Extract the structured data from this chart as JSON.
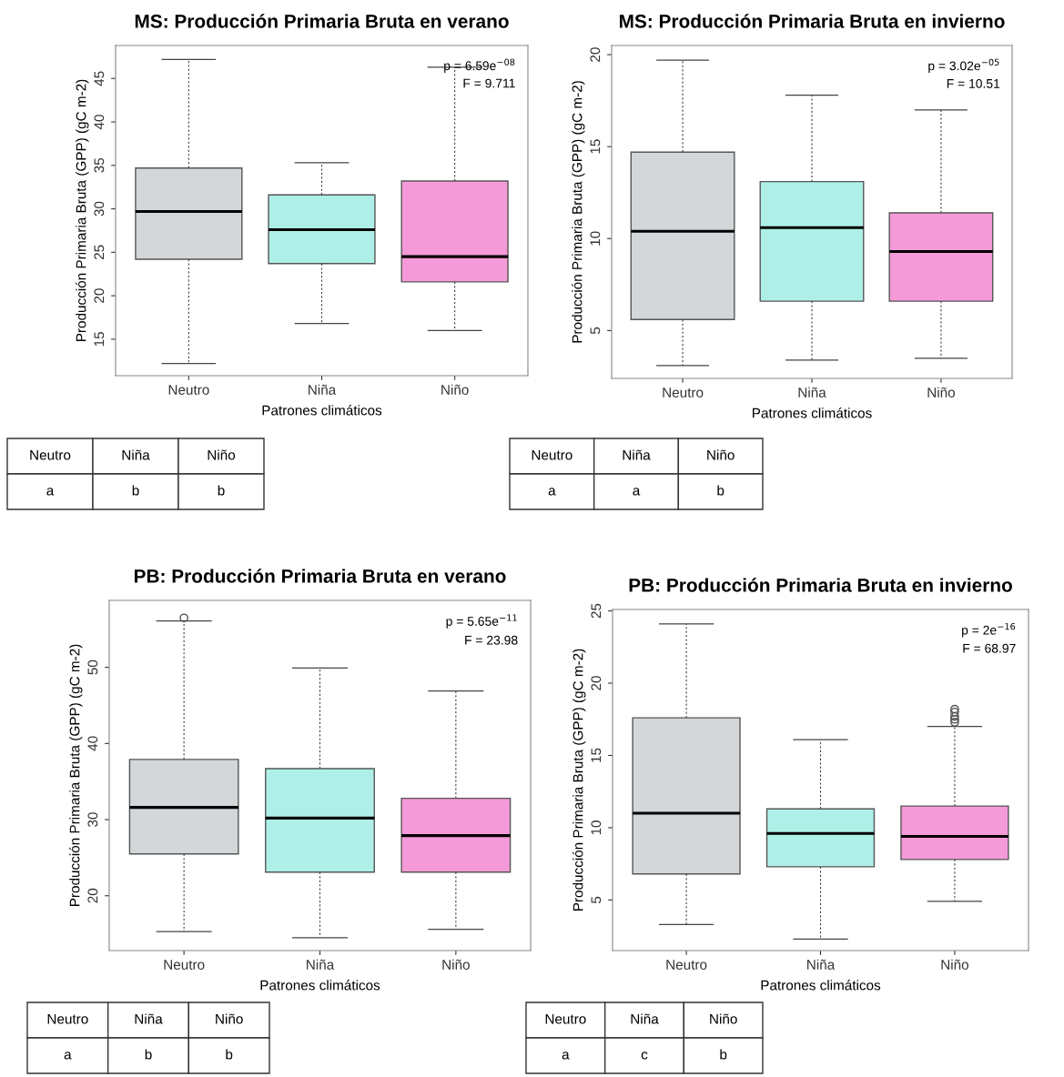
{
  "chart_data": [
    {
      "type": "box",
      "title": "MS: Producción Primaria Bruta en verano",
      "xlabel": "Patrones climáticos",
      "ylabel": "Producción Primaria Bruta (GPP) (gC m-2)",
      "categories": [
        "Neutro",
        "Niña",
        "Niño"
      ],
      "colors": [
        "#d3d7d9",
        "#aef0e8",
        "#f59ad8"
      ],
      "boxes": [
        {
          "low": 12.2,
          "q1": 24.2,
          "median": 29.7,
          "q3": 34.7,
          "high": 47.2
        },
        {
          "low": 16.8,
          "q1": 23.7,
          "median": 27.6,
          "q3": 31.6,
          "high": 35.3
        },
        {
          "low": 16.0,
          "q1": 21.6,
          "median": 24.5,
          "q3": 33.2,
          "high": 46.3
        }
      ],
      "ylim": [
        10.8,
        48.8
      ],
      "yticks": [
        15,
        20,
        25,
        30,
        35,
        40,
        45
      ],
      "annotations": [
        "p = 6.59e$^{−08}$",
        "F = 9.711",
        "a",
        "b",
        "b"
      ]
    },
    {
      "type": "box",
      "title": "MS: Producción Primaria Bruta en invierno",
      "xlabel": "Patrones climáticos",
      "ylabel": "Producción Primaria Bruta (GPP) (gC m-2)",
      "categories": [
        "Neutro",
        "Niña",
        "Niño"
      ],
      "colors": [
        "#d3d7d9",
        "#aef0e8",
        "#f59ad8"
      ],
      "boxes": [
        {
          "low": 3.1,
          "q1": 5.6,
          "median": 10.4,
          "q3": 14.7,
          "high": 19.7
        },
        {
          "low": 3.4,
          "q1": 6.6,
          "median": 10.6,
          "q3": 13.1,
          "high": 17.8
        },
        {
          "low": 3.5,
          "q1": 6.6,
          "median": 9.3,
          "q3": 11.4,
          "high": 17.0
        }
      ],
      "ylim": [
        2.4,
        20.5
      ],
      "yticks": [
        5,
        10,
        15,
        20
      ],
      "annotations": [
        "p = 3.02e$^{−05}$",
        "F = 10.51",
        "a",
        "a",
        "b"
      ]
    },
    {
      "type": "box",
      "title": "PB: Producción Primaria Bruta en verano",
      "xlabel": "Patrones climáticos",
      "ylabel": "Producción Primaria Bruta (GPP) (gC m-2)",
      "categories": [
        "Neutro",
        "Niña",
        "Niño"
      ],
      "colors": [
        "#d3d7d9",
        "#aef0e8",
        "#f59ad8"
      ],
      "boxes": [
        {
          "low": 15.3,
          "q1": 25.5,
          "median": 31.6,
          "q3": 37.9,
          "high": 56.1,
          "outliers": [
            56.5
          ]
        },
        {
          "low": 14.5,
          "q1": 23.1,
          "median": 30.2,
          "q3": 36.7,
          "high": 49.9
        },
        {
          "low": 15.6,
          "q1": 23.1,
          "median": 27.9,
          "q3": 32.8,
          "high": 46.9
        }
      ],
      "ylim": [
        12.8,
        58.8
      ],
      "yticks": [
        20,
        30,
        40,
        50
      ],
      "annotations": [
        "p = 5.65e$^{−11}$",
        "F = 23.98",
        "a",
        "b",
        "b"
      ]
    },
    {
      "type": "box",
      "title": "PB: Producción Primaria Bruta en invierno",
      "xlabel": "Patrones climáticos",
      "ylabel": "Producción Primaria Bruta (GPP) (gC m-2)",
      "categories": [
        "Neutro",
        "Niña",
        "Niño"
      ],
      "colors": [
        "#d3d7d9",
        "#aef0e8",
        "#f59ad8"
      ],
      "boxes": [
        {
          "low": 3.3,
          "q1": 6.8,
          "median": 11.0,
          "q3": 17.6,
          "high": 24.1
        },
        {
          "low": 2.3,
          "q1": 7.3,
          "median": 9.6,
          "q3": 11.3,
          "high": 16.1
        },
        {
          "low": 4.9,
          "q1": 7.8,
          "median": 9.4,
          "q3": 11.5,
          "high": 17.0,
          "outliers": [
            17.3,
            17.5,
            17.7,
            18.0,
            18.2
          ]
        }
      ],
      "ylim": [
        1.5,
        25.1
      ],
      "yticks": [
        5,
        10,
        15,
        20,
        25
      ],
      "annotations": [
        "p = 2e$^{−16}$",
        "F = 68.97",
        "a",
        "c",
        "b"
      ]
    }
  ]
}
